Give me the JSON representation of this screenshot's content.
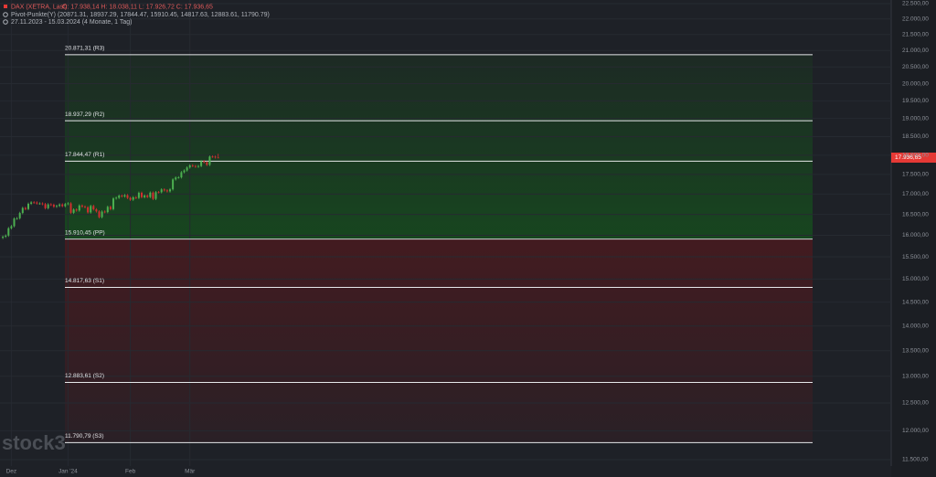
{
  "chart_data": {
    "type": "candlestick",
    "title": "DAX (XETRA, Last)",
    "legend_text": "O: 17.938,14  H: 18.038,11  L: 17.926,72  C: 17.936,65",
    "indicator": "Pivot-Punkte(Y)  (20871.31, 18937.29, 17844.47, 15910.45, 14817.63, 12883.61, 11790.79)",
    "subtitle": "27.11.2023 - 15.03.2024  (4 Monate, 1 Tag)",
    "watermark": "stock3",
    "close_label": "17.936,65",
    "log_scale": true,
    "grid": true,
    "up_color": "#4caf50",
    "down_color": "#d32f2f",
    "open": [
      15940,
      15966,
      15992,
      16166,
      16215,
      16398,
      16405,
      16533,
      16656,
      16629,
      16759,
      16794,
      16791,
      16766,
      16766,
      16751,
      16650,
      16744,
      16733,
      16687,
      16706,
      16742,
      16701,
      16752,
      16769,
      16538,
      16617,
      16594,
      16716,
      16689,
      16673,
      16547,
      16705,
      16622,
      16572,
      16432,
      16567,
      16555,
      16683,
      16627,
      16890,
      16907,
      16961,
      16942,
      16972,
      16904,
      16859,
      16918,
      16904,
      17033,
      16922,
      16964,
      16927,
      17037,
      16880,
      17047,
      17046,
      17117,
      17092,
      17068,
      17118,
      17370,
      17419,
      17423,
      17556,
      17601,
      17678,
      17735,
      17716,
      17698,
      17716,
      17842,
      17815,
      17746,
      17965,
      17961,
      17938.14
    ],
    "high": [
      15996,
      16022,
      16196,
      16245,
      16428,
      16435,
      16563,
      16686,
      16686,
      16789,
      16824,
      16824,
      16821,
      16796,
      16796,
      16781,
      16774,
      16774,
      16763,
      16736,
      16772,
      16772,
      16782,
      16799,
      16799,
      16647,
      16647,
      16746,
      16746,
      16719,
      16703,
      16735,
      16735,
      16652,
      16602,
      16597,
      16597,
      16713,
      16713,
      16920,
      16937,
      16991,
      16991,
      17002,
      17002,
      16934,
      16948,
      16948,
      17063,
      17063,
      16994,
      16994,
      17067,
      17067,
      17077,
      17077,
      17147,
      17147,
      17122,
      17148,
      17400,
      17449,
      17453,
      17586,
      17631,
      17708,
      17765,
      17765,
      17746,
      17746,
      17872,
      17872,
      17845,
      17995,
      17995,
      17991,
      18038.11
    ],
    "low": [
      15910,
      15936,
      15962,
      16136,
      16185,
      16368,
      16375,
      16503,
      16599,
      16599,
      16729,
      16761,
      16736,
      16736,
      16721,
      16620,
      16620,
      16703,
      16657,
      16657,
      16676,
      16671,
      16671,
      16722,
      16508,
      16508,
      16564,
      16564,
      16659,
      16643,
      16517,
      16517,
      16592,
      16542,
      16402,
      16402,
      16525,
      16525,
      16597,
      16597,
      16860,
      16877,
      16912,
      16912,
      16874,
      16829,
      16829,
      16874,
      16874,
      16892,
      16892,
      16897,
      16897,
      16850,
      16850,
      17016,
      17016,
      17062,
      17038,
      17038,
      17088,
      17340,
      17389,
      17393,
      17526,
      17571,
      17648,
      17686,
      17668,
      17668,
      17686,
      17785,
      17716,
      17716,
      17931,
      17912,
      17926.72
    ],
    "close": [
      15966,
      15992,
      16166,
      16215,
      16398,
      16405,
      16533,
      16656,
      16629,
      16759,
      16794,
      16791,
      16766,
      16766,
      16751,
      16650,
      16744,
      16733,
      16687,
      16706,
      16742,
      16701,
      16752,
      16769,
      16538,
      16617,
      16594,
      16716,
      16689,
      16673,
      16547,
      16705,
      16622,
      16572,
      16432,
      16567,
      16555,
      16683,
      16627,
      16890,
      16907,
      16961,
      16942,
      16972,
      16904,
      16859,
      16918,
      16904,
      17033,
      16922,
      16964,
      16927,
      17037,
      16880,
      17047,
      17046,
      17117,
      17092,
      17068,
      17118,
      17370,
      17419,
      17423,
      17556,
      17601,
      17678,
      17735,
      17716,
      17698,
      17716,
      17842,
      17815,
      17746,
      17965,
      17961,
      17942,
      17936.65
    ],
    "pivots": [
      {
        "value": 20871.31,
        "label": "20.871,31 (R3)"
      },
      {
        "value": 18937.29,
        "label": "18.937,29 (R2)"
      },
      {
        "value": 17844.47,
        "label": "17.844,47 (R1)"
      },
      {
        "value": 15910.45,
        "label": "15.910,45 (PP)"
      },
      {
        "value": 14817.63,
        "label": "14.817,63 (S1)"
      },
      {
        "value": 12883.61,
        "label": "12.883,61 (S2)"
      },
      {
        "value": 11790.79,
        "label": "11.790,79 (S3)"
      }
    ],
    "xlim": [
      -1,
      313.5
    ],
    "xticks": [
      {
        "value": 3,
        "label": "Dez"
      },
      {
        "value": 23,
        "label": "Jan '24"
      },
      {
        "value": 45,
        "label": "Feb"
      },
      {
        "value": 66,
        "label": "Mär"
      }
    ],
    "ylim": [
      11361,
      22621
    ],
    "yticks": [
      {
        "value": 22500,
        "label": "22.500,00"
      },
      {
        "value": 22000,
        "label": "22.000,00"
      },
      {
        "value": 21500,
        "label": "21.500,00"
      },
      {
        "value": 21000,
        "label": "21.000,00"
      },
      {
        "value": 20500,
        "label": "20.500,00"
      },
      {
        "value": 20000,
        "label": "20.000,00"
      },
      {
        "value": 19500,
        "label": "19.500,00"
      },
      {
        "value": 19000,
        "label": "19.000,00"
      },
      {
        "value": 18500,
        "label": "18.500,00"
      },
      {
        "value": 18000,
        "label": "18.000,00"
      },
      {
        "value": 17500,
        "label": "17.500,00"
      },
      {
        "value": 17000,
        "label": "17.000,00"
      },
      {
        "value": 16500,
        "label": "16.500,00"
      },
      {
        "value": 16000,
        "label": "16.000,00"
      },
      {
        "value": 15500,
        "label": "15.500,00"
      },
      {
        "value": 15000,
        "label": "15.000,00"
      },
      {
        "value": 14500,
        "label": "14.500,00"
      },
      {
        "value": 14000,
        "label": "14.000,00"
      },
      {
        "value": 13500,
        "label": "13.500,00"
      },
      {
        "value": 13000,
        "label": "13.000,00"
      },
      {
        "value": 12500,
        "label": "12.500,00"
      },
      {
        "value": 12000,
        "label": "12.000,00"
      },
      {
        "value": 11500,
        "label": "11.500,00"
      }
    ]
  }
}
